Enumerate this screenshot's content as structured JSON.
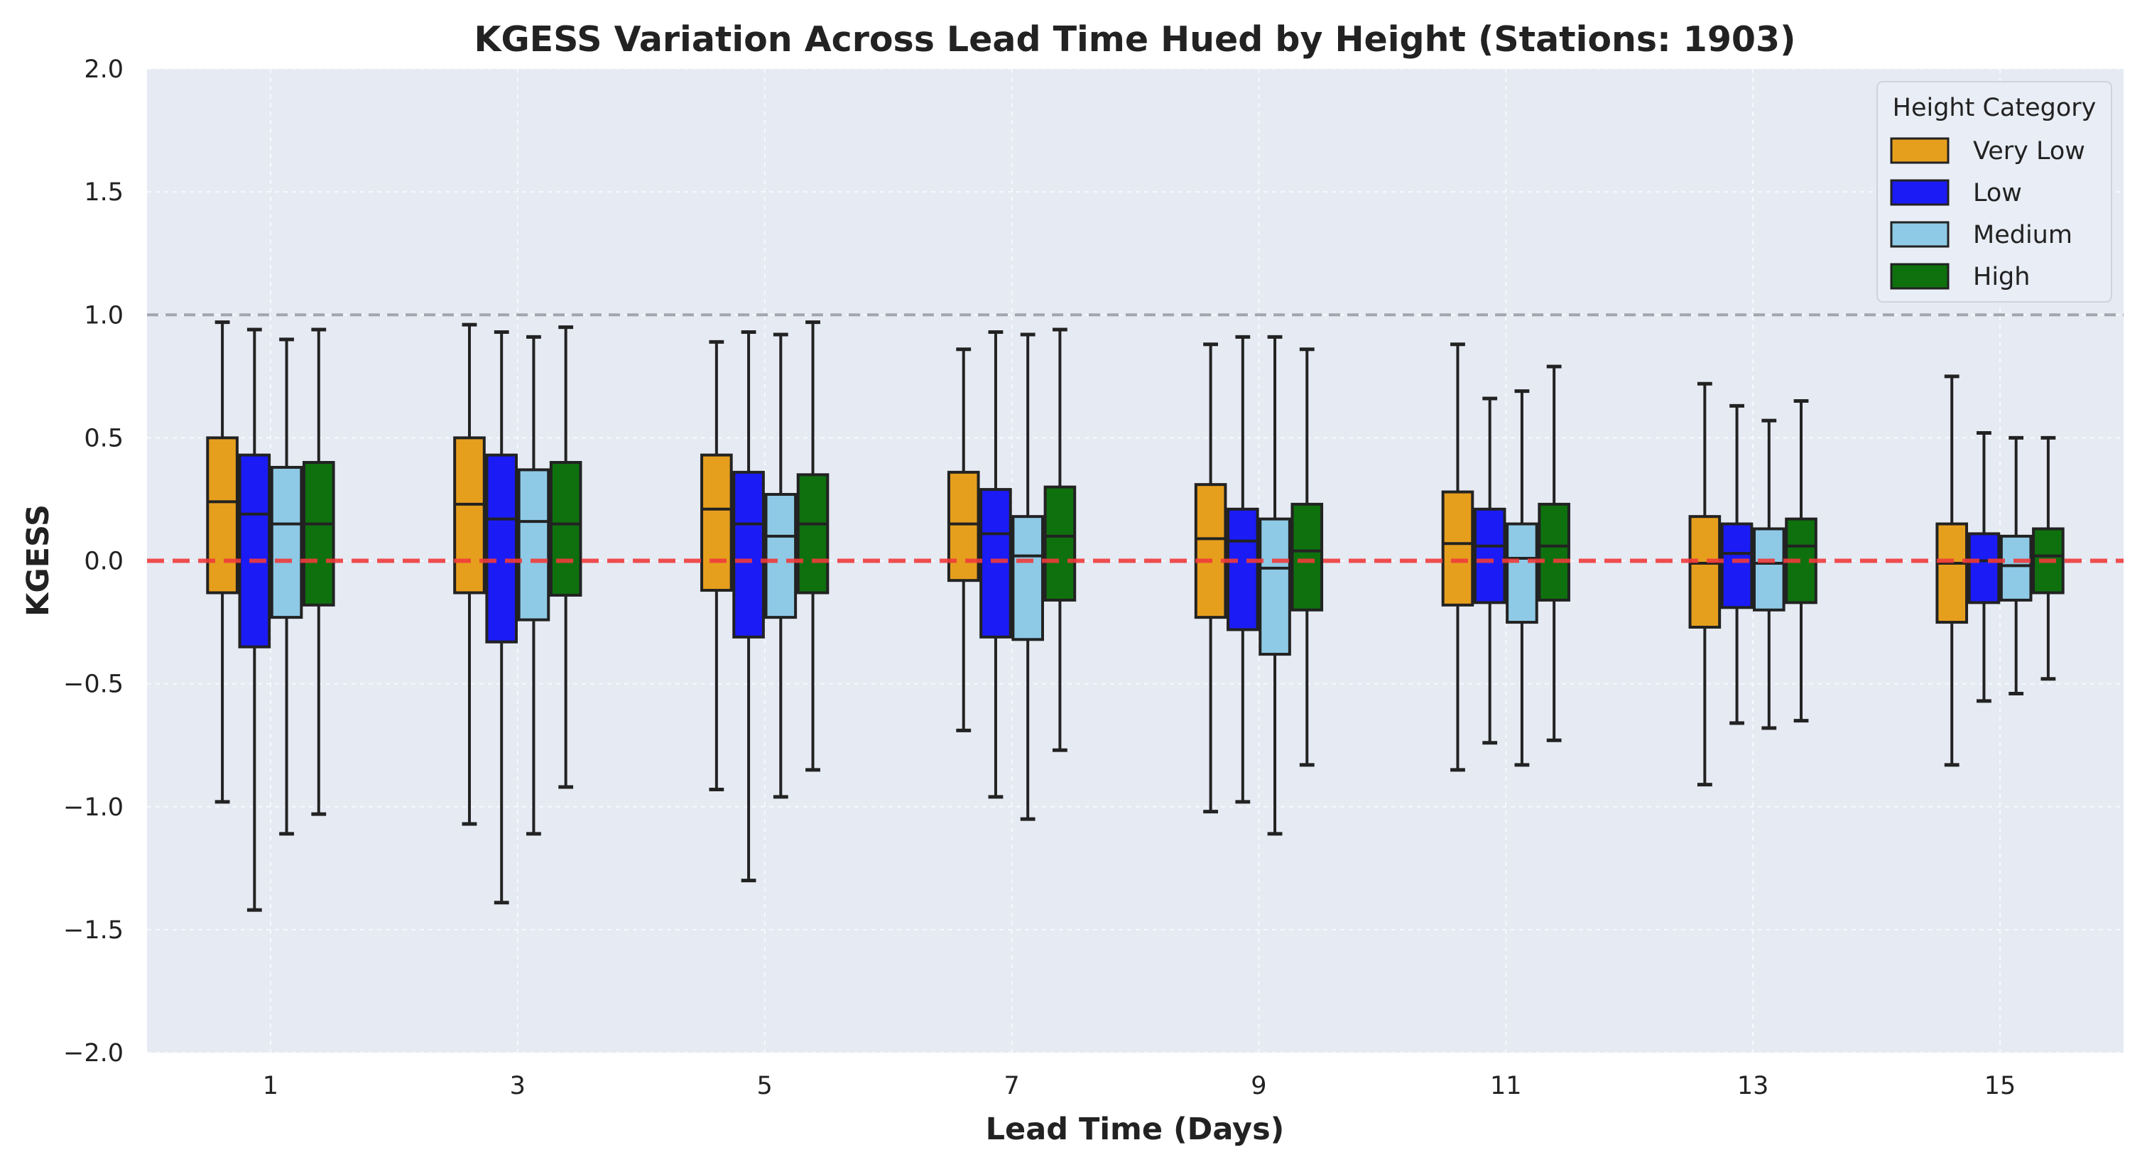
{
  "chart_data": {
    "type": "box",
    "title": "KGESS Variation Across Lead Time Hued by Height (Stations: 1903)",
    "xlabel": "Lead Time (Days)",
    "ylabel": "KGESS",
    "ylim": [
      -2.0,
      2.0
    ],
    "yticks": [
      "2.0",
      "1.5",
      "1.0",
      "0.5",
      "0.0",
      "−0.5",
      "−1.0",
      "−1.5",
      "−2.0"
    ],
    "ytick_values": [
      2.0,
      1.5,
      1.0,
      0.5,
      0.0,
      -0.5,
      -1.0,
      -1.5,
      -2.0
    ],
    "categories": [
      "1",
      "3",
      "5",
      "7",
      "9",
      "11",
      "13",
      "15"
    ],
    "reference_lines": [
      {
        "y": 1.0,
        "color": "#9a9ca6",
        "style": "dashed"
      },
      {
        "y": 0.0,
        "color": "#ef3b3b",
        "style": "dashed"
      }
    ],
    "grid": true,
    "background": "#e5eaf3",
    "legend": {
      "title": "Height Category",
      "position": "top-right"
    },
    "series": [
      {
        "name": "Very Low",
        "color": "#e69f1d",
        "boxes": [
          {
            "whislo": -0.98,
            "q1": -0.13,
            "med": 0.24,
            "q3": 0.5,
            "whishi": 0.97
          },
          {
            "whislo": -1.07,
            "q1": -0.13,
            "med": 0.23,
            "q3": 0.5,
            "whishi": 0.96
          },
          {
            "whislo": -0.93,
            "q1": -0.12,
            "med": 0.21,
            "q3": 0.43,
            "whishi": 0.89
          },
          {
            "whislo": -0.69,
            "q1": -0.08,
            "med": 0.15,
            "q3": 0.36,
            "whishi": 0.86
          },
          {
            "whislo": -1.02,
            "q1": -0.23,
            "med": 0.09,
            "q3": 0.31,
            "whishi": 0.88
          },
          {
            "whislo": -0.85,
            "q1": -0.18,
            "med": 0.07,
            "q3": 0.28,
            "whishi": 0.88
          },
          {
            "whislo": -0.91,
            "q1": -0.27,
            "med": -0.01,
            "q3": 0.18,
            "whishi": 0.72
          },
          {
            "whislo": -0.83,
            "q1": -0.25,
            "med": -0.01,
            "q3": 0.15,
            "whishi": 0.75
          }
        ]
      },
      {
        "name": "Low",
        "color": "#1b1bf5",
        "boxes": [
          {
            "whislo": -1.42,
            "q1": -0.35,
            "med": 0.19,
            "q3": 0.43,
            "whishi": 0.94
          },
          {
            "whislo": -1.39,
            "q1": -0.33,
            "med": 0.17,
            "q3": 0.43,
            "whishi": 0.93
          },
          {
            "whislo": -1.3,
            "q1": -0.31,
            "med": 0.15,
            "q3": 0.36,
            "whishi": 0.93
          },
          {
            "whislo": -0.96,
            "q1": -0.31,
            "med": 0.11,
            "q3": 0.29,
            "whishi": 0.93
          },
          {
            "whislo": -0.98,
            "q1": -0.28,
            "med": 0.08,
            "q3": 0.21,
            "whishi": 0.91
          },
          {
            "whislo": -0.74,
            "q1": -0.17,
            "med": 0.06,
            "q3": 0.21,
            "whishi": 0.66
          },
          {
            "whislo": -0.66,
            "q1": -0.19,
            "med": 0.03,
            "q3": 0.15,
            "whishi": 0.63
          },
          {
            "whislo": -0.57,
            "q1": -0.17,
            "med": 0.0,
            "q3": 0.11,
            "whishi": 0.52
          }
        ]
      },
      {
        "name": "Medium",
        "color": "#8ecae6",
        "boxes": [
          {
            "whislo": -1.11,
            "q1": -0.23,
            "med": 0.15,
            "q3": 0.38,
            "whishi": 0.9
          },
          {
            "whislo": -1.11,
            "q1": -0.24,
            "med": 0.16,
            "q3": 0.37,
            "whishi": 0.91
          },
          {
            "whislo": -0.96,
            "q1": -0.23,
            "med": 0.1,
            "q3": 0.27,
            "whishi": 0.92
          },
          {
            "whislo": -1.05,
            "q1": -0.32,
            "med": 0.02,
            "q3": 0.18,
            "whishi": 0.92
          },
          {
            "whislo": -1.11,
            "q1": -0.38,
            "med": -0.03,
            "q3": 0.17,
            "whishi": 0.91
          },
          {
            "whislo": -0.83,
            "q1": -0.25,
            "med": 0.01,
            "q3": 0.15,
            "whishi": 0.69
          },
          {
            "whislo": -0.68,
            "q1": -0.2,
            "med": -0.01,
            "q3": 0.13,
            "whishi": 0.57
          },
          {
            "whislo": -0.54,
            "q1": -0.16,
            "med": -0.02,
            "q3": 0.1,
            "whishi": 0.5
          }
        ]
      },
      {
        "name": "High",
        "color": "#0e710e",
        "boxes": [
          {
            "whislo": -1.03,
            "q1": -0.18,
            "med": 0.15,
            "q3": 0.4,
            "whishi": 0.94
          },
          {
            "whislo": -0.92,
            "q1": -0.14,
            "med": 0.15,
            "q3": 0.4,
            "whishi": 0.95
          },
          {
            "whislo": -0.85,
            "q1": -0.13,
            "med": 0.15,
            "q3": 0.35,
            "whishi": 0.97
          },
          {
            "whislo": -0.77,
            "q1": -0.16,
            "med": 0.1,
            "q3": 0.3,
            "whishi": 0.94
          },
          {
            "whislo": -0.83,
            "q1": -0.2,
            "med": 0.04,
            "q3": 0.23,
            "whishi": 0.86
          },
          {
            "whislo": -0.73,
            "q1": -0.16,
            "med": 0.06,
            "q3": 0.23,
            "whishi": 0.79
          },
          {
            "whislo": -0.65,
            "q1": -0.17,
            "med": 0.06,
            "q3": 0.17,
            "whishi": 0.65
          },
          {
            "whislo": -0.48,
            "q1": -0.13,
            "med": 0.02,
            "q3": 0.13,
            "whishi": 0.5
          }
        ]
      }
    ]
  }
}
